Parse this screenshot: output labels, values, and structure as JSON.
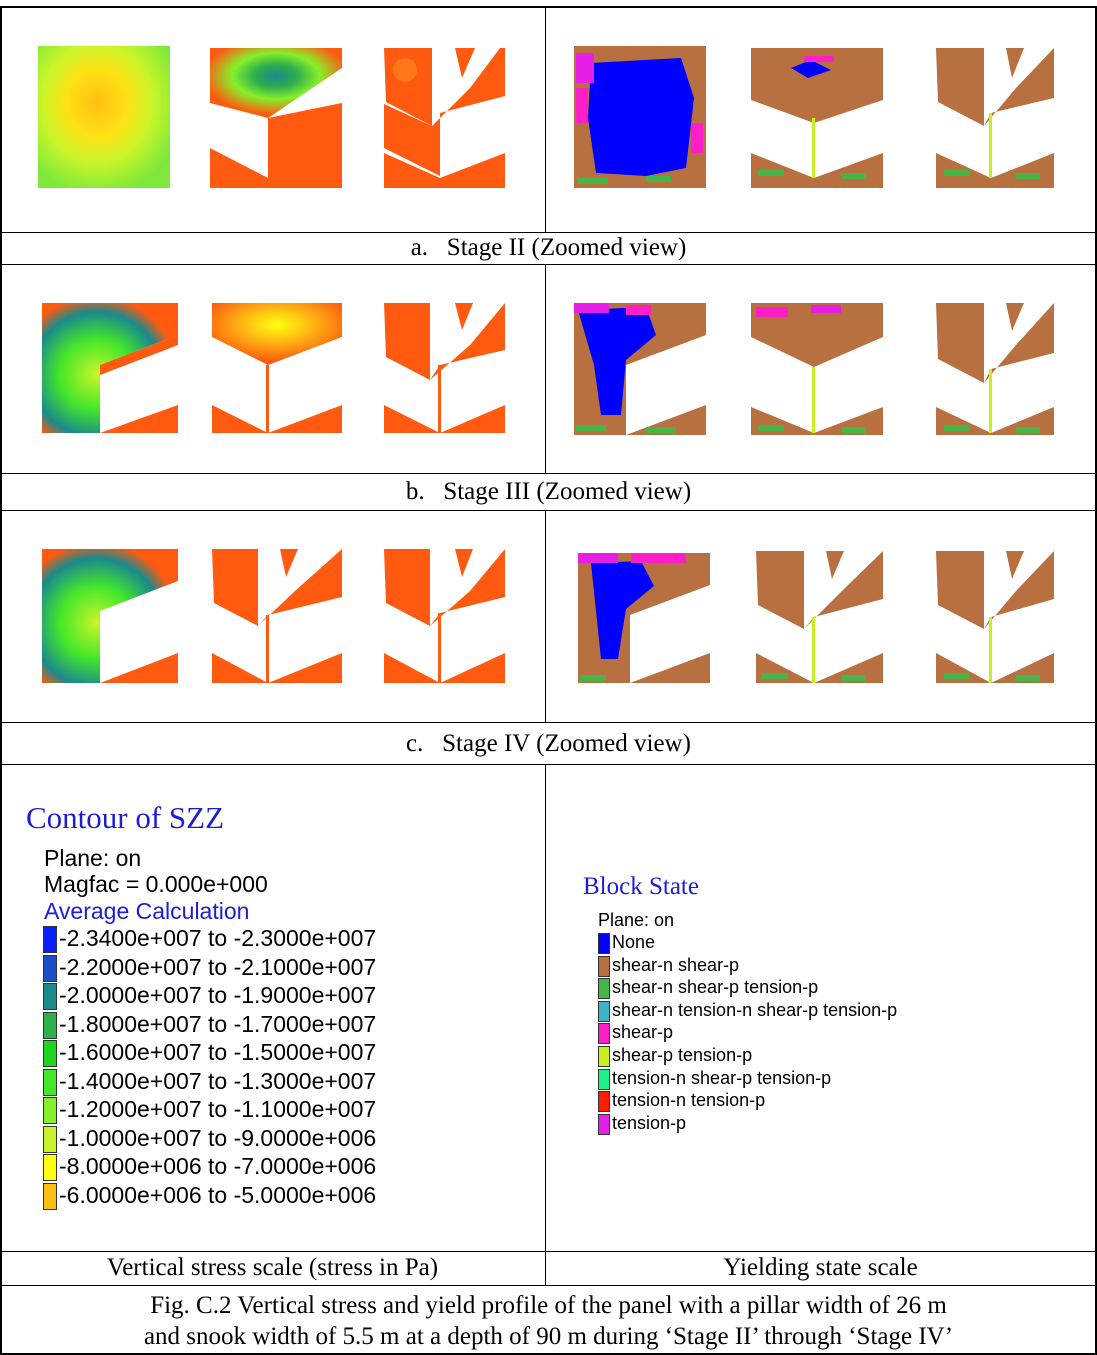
{
  "stages": [
    {
      "caption_letter": "a.",
      "caption_text": "Stage II (Zoomed view)"
    },
    {
      "caption_letter": "b.",
      "caption_text": "Stage III (Zoomed view)"
    },
    {
      "caption_letter": "c.",
      "caption_text": "Stage IV (Zoomed view)"
    }
  ],
  "stress_legend": {
    "title": "Contour of SZZ",
    "plane": "Plane: on",
    "magfac": "Magfac =  0.000e+000",
    "calc": "Average Calculation",
    "items": [
      {
        "label": "-2.3400e+007 to -2.3000e+007",
        "color": "#0a20ff"
      },
      {
        "label": "-2.2000e+007 to -2.1000e+007",
        "color": "#1a4fc8"
      },
      {
        "label": "-2.0000e+007 to -1.9000e+007",
        "color": "#1a8a8c"
      },
      {
        "label": "-1.8000e+007 to -1.7000e+007",
        "color": "#2fae4c"
      },
      {
        "label": "-1.6000e+007 to -1.5000e+007",
        "color": "#1fd61f"
      },
      {
        "label": "-1.4000e+007 to -1.3000e+007",
        "color": "#44e62a"
      },
      {
        "label": "-1.2000e+007 to -1.1000e+007",
        "color": "#86f02a"
      },
      {
        "label": "-1.0000e+007 to -9.0000e+006",
        "color": "#c8f52a"
      },
      {
        "label": "-8.0000e+006 to -7.0000e+006",
        "color": "#ffff10"
      },
      {
        "label": "-6.0000e+006 to -5.0000e+006",
        "color": "#ffbf12"
      }
    ]
  },
  "yield_legend": {
    "title": "Block State",
    "plane": "Plane: on",
    "items": [
      {
        "label": "None",
        "color": "#0000ff"
      },
      {
        "label": "shear-n shear-p",
        "color": "#b87040"
      },
      {
        "label": "shear-n shear-p tension-p",
        "color": "#46b446"
      },
      {
        "label": "shear-n tension-n shear-p tension-p",
        "color": "#3cb4c8"
      },
      {
        "label": "shear-p",
        "color": "#ff1ec8"
      },
      {
        "label": "shear-p tension-p",
        "color": "#c8f020"
      },
      {
        "label": "tension-n shear-p tension-p",
        "color": "#1ef08c"
      },
      {
        "label": "tension-n tension-p",
        "color": "#ff1e00"
      },
      {
        "label": "tension-p",
        "color": "#e61ee6"
      }
    ]
  },
  "bottom_labels": {
    "left": "Vertical stress scale (stress in Pa)",
    "right": "Yielding state scale"
  },
  "figure_caption": {
    "line1": "Fig. C.2 Vertical stress and yield profile of the panel with a pillar width of 26 m",
    "line2": "and snook width of 5.5 m at a depth of 90 m during ‘Stage II’ through ‘Stage IV’"
  },
  "colors": {
    "stress_base": "#ff5a10",
    "yield_base": "#b87040"
  }
}
